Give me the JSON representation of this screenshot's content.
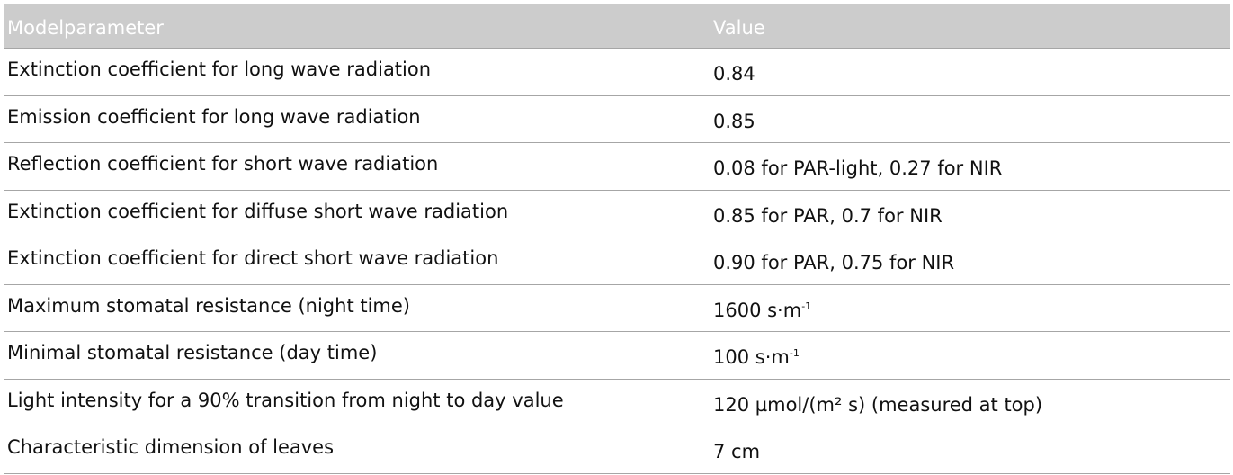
{
  "table": {
    "header": {
      "parameter": "Modelparameter",
      "value": "Value"
    },
    "rows": [
      {
        "parameter": "Extinction coefficient for long wave radiation",
        "value": "0.84",
        "value_sup": ""
      },
      {
        "parameter": "Emission coefficient for long wave radiation",
        "value": "0.85",
        "value_sup": ""
      },
      {
        "parameter": "Reflection coefficient for short wave radiation",
        "value": "0.08 for PAR-light, 0.27 for NIR",
        "value_sup": ""
      },
      {
        "parameter": "Extinction coefficient for diffuse short wave radiation",
        "value": "0.85 for PAR, 0.7 for NIR",
        "value_sup": ""
      },
      {
        "parameter": "Extinction coefficient for direct short wave radiation",
        "value": "0.90 for PAR, 0.75 for NIR",
        "value_sup": ""
      },
      {
        "parameter": "Maximum stomatal resistance (night time)",
        "value": "1600 s·m",
        "value_sup": "-1"
      },
      {
        "parameter": "Minimal stomatal resistance (day time)",
        "value": "100 s·m",
        "value_sup": "-1"
      },
      {
        "parameter": "Light intensity for a 90% transition from night to day value",
        "value": "120 µmol/(m² s)  (measured at top)",
        "value_sup": ""
      },
      {
        "parameter": "Characteristic dimension of leaves",
        "value": "7 cm",
        "value_sup": ""
      }
    ]
  }
}
